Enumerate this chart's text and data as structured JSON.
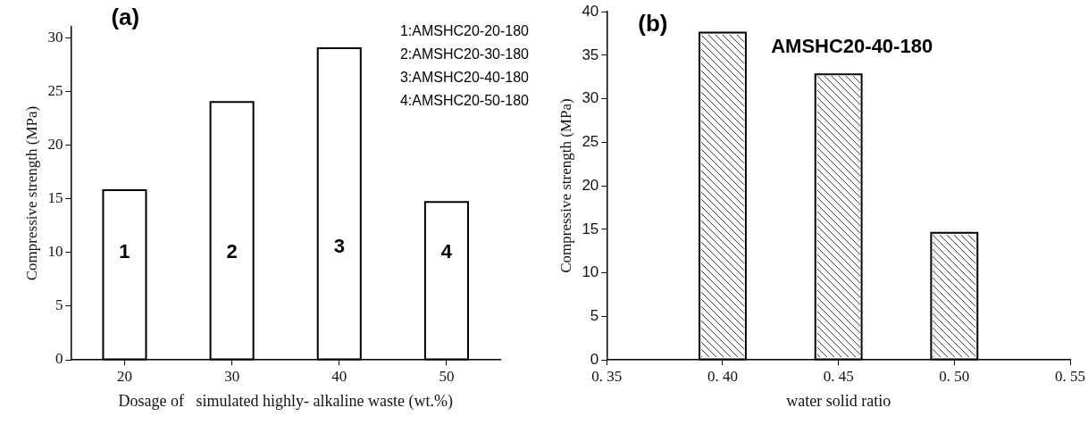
{
  "chart_data": [
    {
      "type": "bar",
      "title": "(a)",
      "xlabel": "Dosage of   simulated highly- alkaline waste (wt.%)",
      "ylabel": "Compressive strength (MPa)",
      "categories": [
        "20",
        "30",
        "40",
        "50"
      ],
      "values": [
        15.8,
        24,
        29,
        14.7
      ],
      "color": "#ffffff",
      "ylim": [
        0,
        31
      ],
      "yticks": [
        0,
        5,
        10,
        15,
        20,
        25,
        30
      ],
      "grid": false,
      "legend": false,
      "annotations": [
        "1:AMSHC20-20-180",
        "2:AMSHC20-30-180",
        "3:AMSHC20-40-180",
        "4:AMSHC20-50-180",
        "1",
        "2",
        "3",
        "4"
      ]
    },
    {
      "type": "bar",
      "title": "(b)",
      "xlabel": "water solid ratio",
      "ylabel": "Compressive strength (MPa)",
      "categories": [
        "0. 35",
        "0. 40",
        "0. 45",
        "0. 50",
        "0. 55"
      ],
      "values": [
        null,
        37.6,
        32.8,
        14.6,
        null
      ],
      "color": "#ffffff",
      "ylim": [
        0,
        40
      ],
      "yticks": [
        0,
        5,
        10,
        15,
        20,
        25,
        30,
        35,
        40
      ],
      "grid": false,
      "legend": false,
      "annotations": [
        {
          "text": "AMSHC20-40-180",
          "x": "0. 45",
          "y": 32.8
        }
      ]
    }
  ]
}
